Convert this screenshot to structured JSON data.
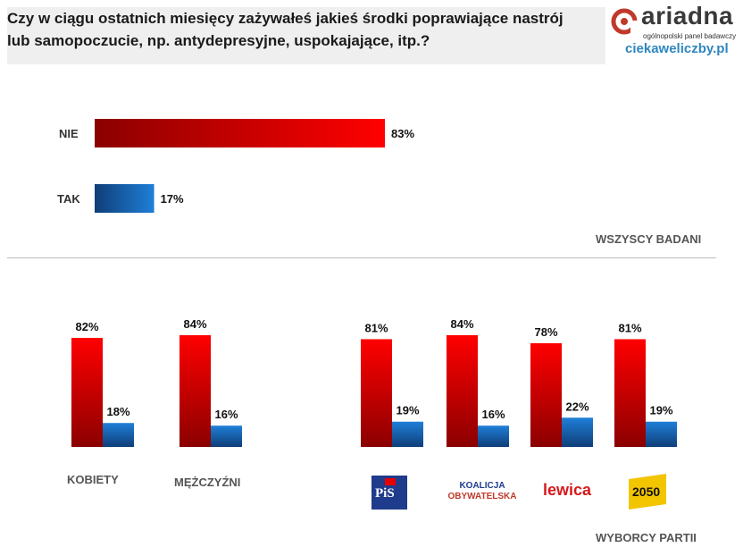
{
  "title": "Czy w ciągu ostatnich miesięcy zażywałeś jakieś środki poprawiające nastrój lub samopoczucie, np. antydepresyjne, uspokajające, itp.?",
  "brand": {
    "name": "ariadna",
    "tagline": "ogólnopolski panel badawczy",
    "site": "ciekaweliczby.pl"
  },
  "colors": {
    "nie": "#e60000",
    "tak": "#1f6fbf"
  },
  "chart_data": [
    {
      "type": "bar",
      "orientation": "horizontal",
      "group": "WSZYSCY BADANI",
      "categories": [
        "NIE",
        "TAK"
      ],
      "values": [
        83,
        17
      ],
      "labels": [
        "83%",
        "17%"
      ],
      "unit": "%"
    },
    {
      "type": "bar",
      "orientation": "vertical",
      "categories": [
        "KOBIETY",
        "MĘŻCZYŹNI"
      ],
      "series": [
        {
          "values": [
            82,
            84
          ],
          "labels": [
            "82%",
            "84%"
          ]
        },
        {
          "values": [
            18,
            16
          ],
          "labels": [
            "18%",
            "16%"
          ]
        }
      ],
      "unit": "%"
    },
    {
      "type": "bar",
      "orientation": "vertical",
      "group": "WYBORCY PARTII",
      "categories": [
        "PiS",
        "KOALICJA OBYWATELSKA",
        "Lewica",
        "2050"
      ],
      "series": [
        {
          "values": [
            81,
            84,
            78,
            81
          ],
          "labels": [
            "81%",
            "84%",
            "78%",
            "81%"
          ]
        },
        {
          "values": [
            19,
            16,
            22,
            19
          ],
          "labels": [
            "19%",
            "16%",
            "22%",
            "19%"
          ]
        }
      ],
      "unit": "%"
    }
  ],
  "party_logos": {
    "pis": "PiS",
    "ko_line1": "KOALICJA",
    "ko_line2": "OBYWATELSKA",
    "lewica": "lewica",
    "p2050": "2050"
  }
}
